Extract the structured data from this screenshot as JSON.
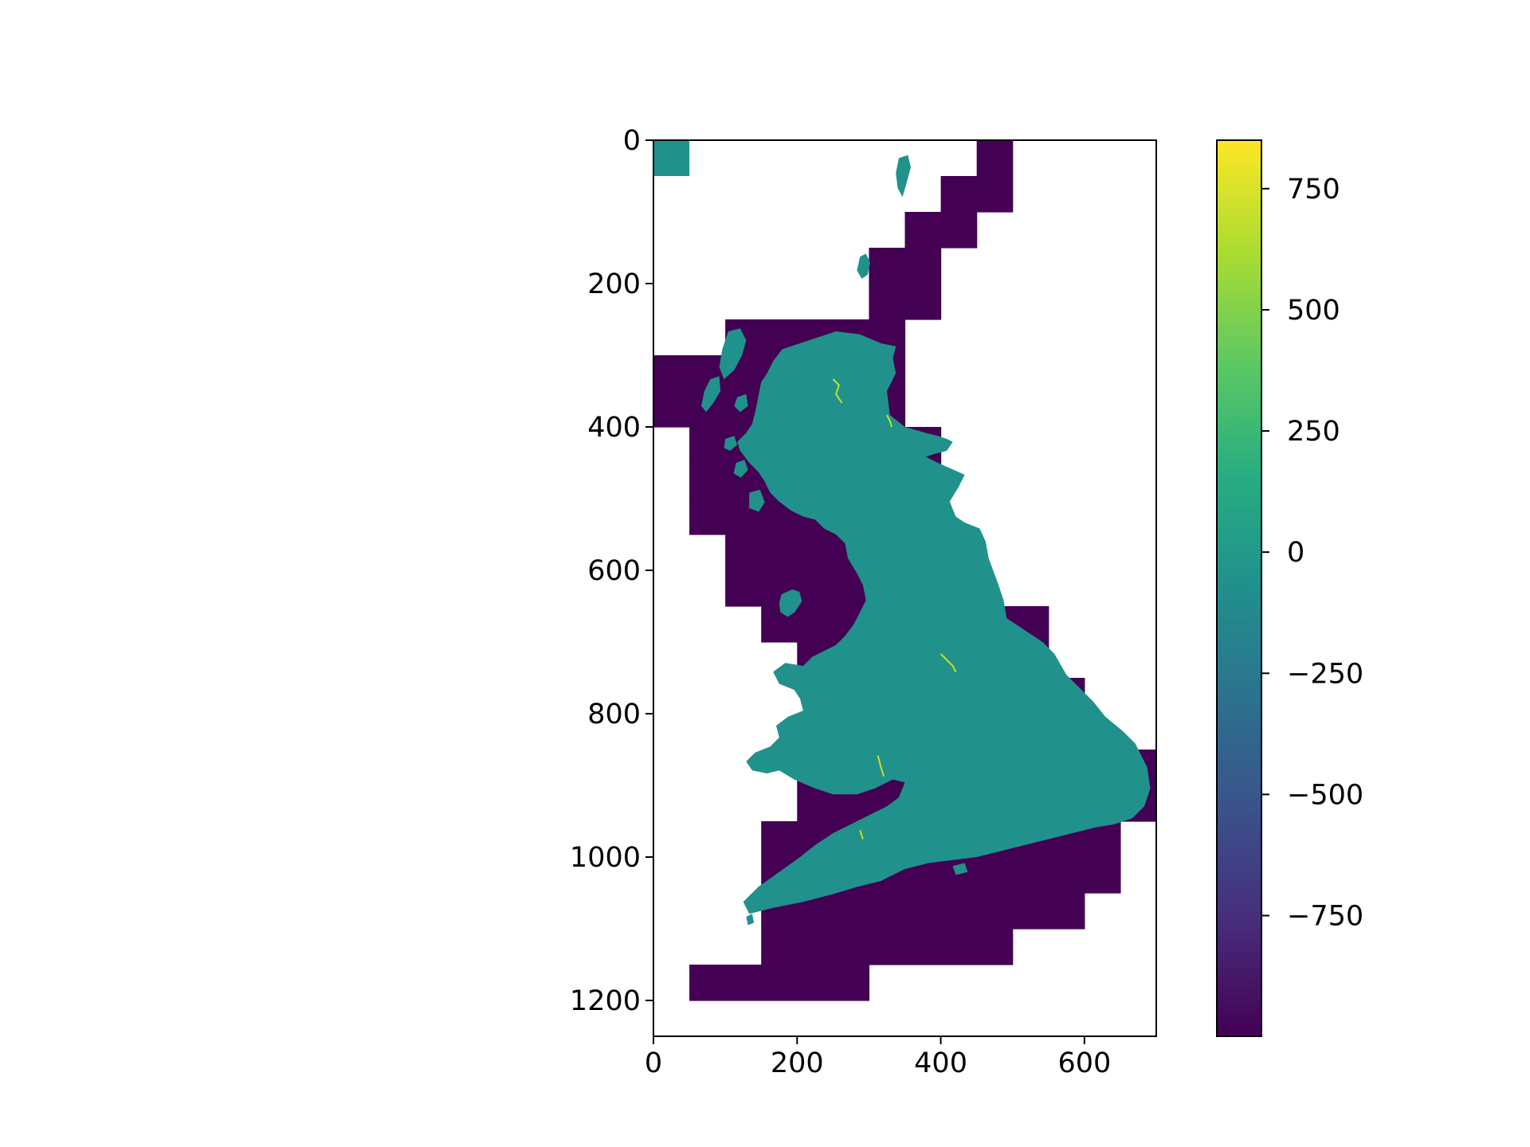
{
  "chart_data": {
    "type": "heatmap",
    "title": "",
    "xlabel": "",
    "ylabel": "",
    "xlim": [
      0,
      700
    ],
    "ylim": [
      1250,
      0
    ],
    "x_ticks": [
      0,
      200,
      400,
      600
    ],
    "y_ticks": [
      0,
      200,
      400,
      600,
      800,
      1000,
      1200
    ],
    "grid": false,
    "colormap": "viridis",
    "nodata_value": -999,
    "land_value": 0,
    "land_max_value": 850,
    "colorbar": {
      "range": [
        -999,
        850
      ],
      "ticks": [
        750,
        500,
        250,
        0,
        -250,
        -500,
        -750
      ],
      "tick_labels": [
        "750",
        "500",
        "250",
        "0",
        "−250",
        "−500",
        "−750"
      ],
      "location": "right"
    },
    "tiles": [
      [
        450,
        0,
        500,
        50
      ],
      [
        400,
        50,
        500,
        100
      ],
      [
        350,
        100,
        450,
        150
      ],
      [
        300,
        150,
        400,
        200
      ],
      [
        300,
        200,
        400,
        250
      ],
      [
        100,
        250,
        350,
        300
      ],
      [
        0,
        300,
        350,
        350
      ],
      [
        0,
        350,
        350,
        400
      ],
      [
        50,
        400,
        400,
        450
      ],
      [
        50,
        450,
        400,
        500
      ],
      [
        50,
        500,
        400,
        550
      ],
      [
        100,
        550,
        450,
        600
      ],
      [
        100,
        600,
        450,
        650
      ],
      [
        150,
        650,
        550,
        700
      ],
      [
        200,
        700,
        550,
        750
      ],
      [
        300,
        750,
        600,
        800
      ],
      [
        200,
        800,
        600,
        850
      ],
      [
        200,
        850,
        700,
        900
      ],
      [
        200,
        900,
        700,
        950
      ],
      [
        150,
        950,
        650,
        1000
      ],
      [
        150,
        1000,
        650,
        1050
      ],
      [
        150,
        1050,
        600,
        1100
      ],
      [
        150,
        1100,
        500,
        1150
      ],
      [
        50,
        1150,
        300,
        1200
      ]
    ],
    "marker_tile": [
      0,
      0,
      50,
      50
    ]
  },
  "colors": {
    "nodata": "#440154",
    "land": "#21918c",
    "river": "#c8e020"
  }
}
